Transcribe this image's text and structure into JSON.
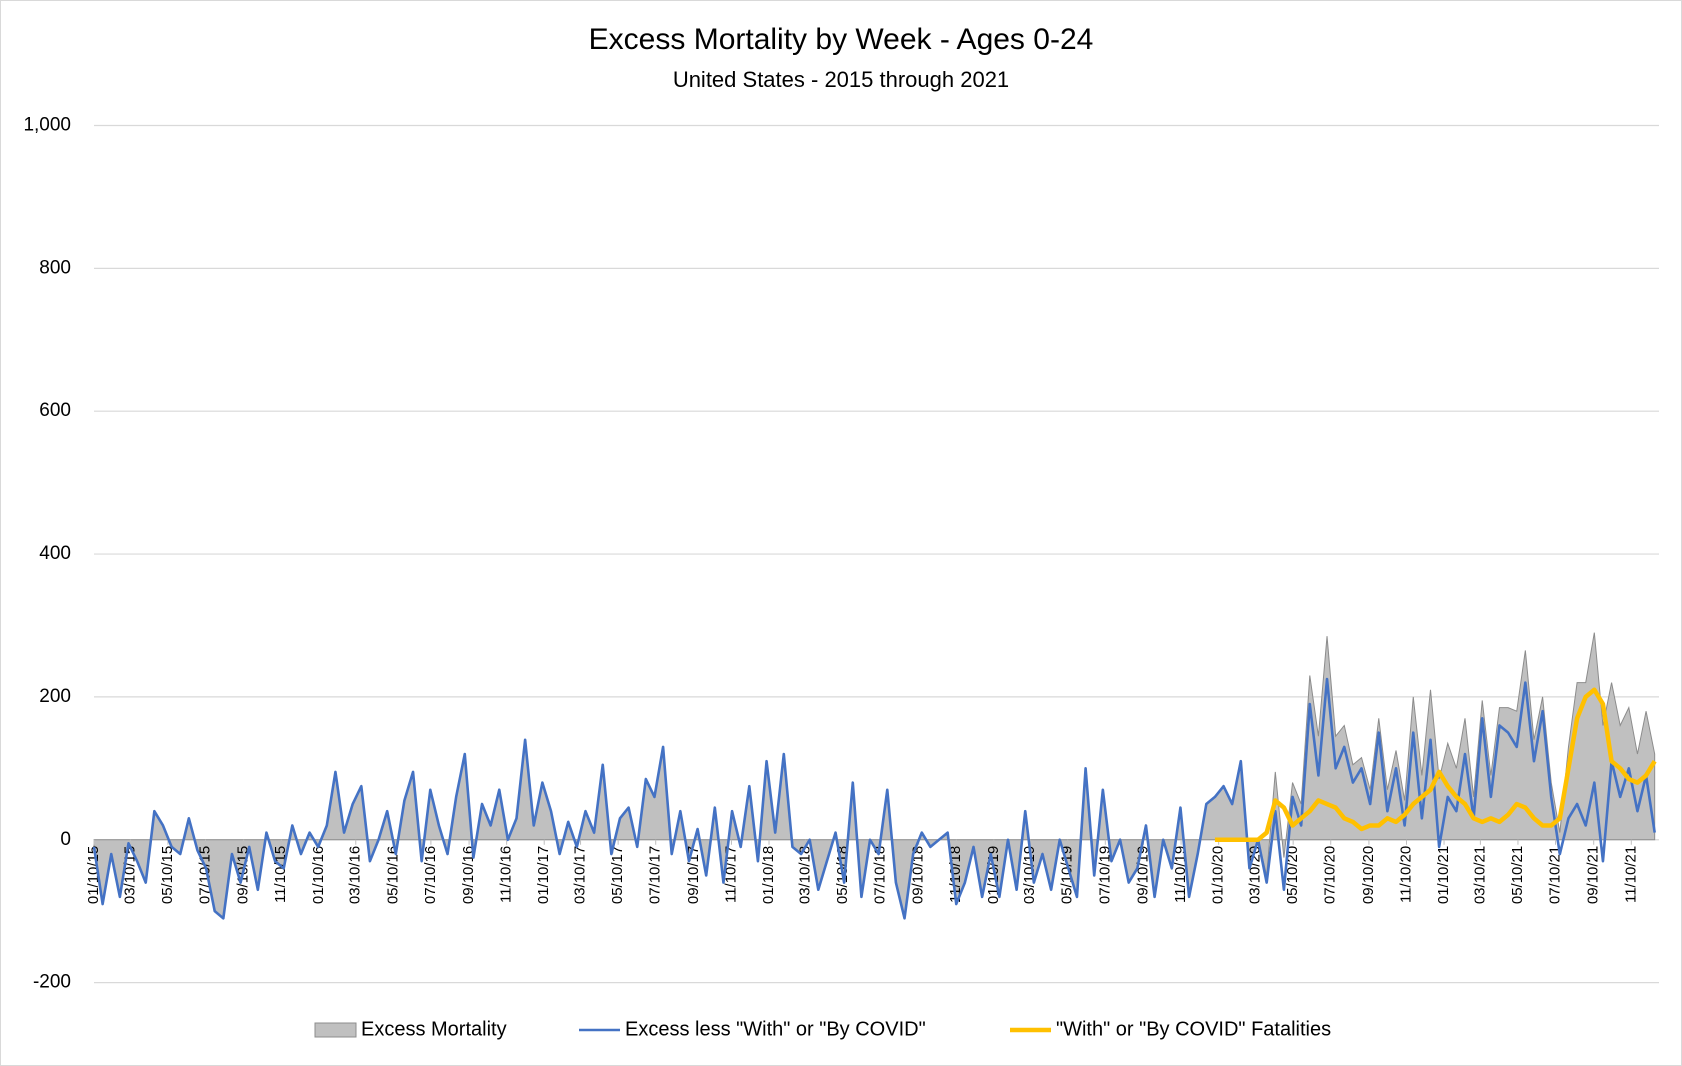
{
  "chart_data": {
    "type": "line",
    "title": "Excess Mortality by Week - Ages 0-24",
    "subtitle": "United States - 2015 through 2021",
    "x": [
      "01/10/15",
      "01/24/15",
      "02/07/15",
      "02/21/15",
      "03/07/15",
      "03/21/15",
      "04/04/15",
      "04/18/15",
      "05/02/15",
      "05/16/15",
      "05/30/15",
      "06/13/15",
      "06/27/15",
      "07/11/15",
      "07/25/15",
      "08/08/15",
      "08/22/15",
      "09/05/15",
      "09/19/15",
      "10/03/15",
      "10/17/15",
      "10/31/15",
      "11/14/15",
      "11/28/15",
      "12/12/15",
      "12/26/15",
      "01/09/16",
      "01/23/16",
      "02/06/16",
      "02/20/16",
      "03/05/16",
      "03/19/16",
      "04/02/16",
      "04/16/16",
      "04/30/16",
      "05/14/16",
      "05/28/16",
      "06/11/16",
      "06/25/16",
      "07/09/16",
      "07/23/16",
      "08/06/16",
      "08/20/16",
      "09/03/16",
      "09/17/16",
      "10/01/16",
      "10/15/16",
      "10/29/16",
      "11/12/16",
      "11/26/16",
      "12/10/16",
      "12/24/16",
      "01/07/17",
      "01/21/17",
      "02/04/17",
      "02/18/17",
      "03/04/17",
      "03/18/17",
      "04/01/17",
      "04/15/17",
      "04/29/17",
      "05/13/17",
      "05/27/17",
      "06/10/17",
      "06/24/17",
      "07/08/17",
      "07/22/17",
      "08/05/17",
      "08/19/17",
      "09/02/17",
      "09/16/17",
      "09/30/17",
      "10/14/17",
      "10/28/17",
      "11/11/17",
      "11/25/17",
      "12/09/17",
      "12/23/17",
      "01/06/18",
      "01/20/18",
      "02/03/18",
      "02/17/18",
      "03/03/18",
      "03/17/18",
      "03/31/18",
      "04/14/18",
      "04/28/18",
      "05/12/18",
      "05/26/18",
      "06/09/18",
      "06/23/18",
      "07/07/18",
      "07/21/18",
      "08/04/18",
      "08/18/18",
      "09/01/18",
      "09/15/18",
      "09/29/18",
      "10/13/18",
      "10/27/18",
      "11/10/18",
      "11/24/18",
      "12/08/18",
      "12/22/18",
      "01/05/19",
      "01/19/19",
      "02/02/19",
      "02/16/19",
      "03/02/19",
      "03/16/19",
      "03/30/19",
      "04/13/19",
      "04/27/19",
      "05/11/19",
      "05/25/19",
      "06/08/19",
      "06/22/19",
      "07/06/19",
      "07/20/19",
      "08/03/19",
      "08/17/19",
      "08/31/19",
      "09/14/19",
      "09/28/19",
      "10/12/19",
      "10/26/19",
      "11/09/19",
      "11/23/19",
      "12/07/19",
      "12/21/19",
      "01/04/20",
      "01/18/20",
      "02/01/20",
      "02/15/20",
      "02/29/20",
      "03/14/20",
      "03/28/20",
      "04/11/20",
      "04/25/20",
      "05/09/20",
      "05/23/20",
      "06/06/20",
      "06/20/20",
      "07/04/20",
      "07/18/20",
      "08/01/20",
      "08/15/20",
      "08/29/20",
      "09/12/20",
      "09/26/20",
      "10/10/20",
      "10/24/20",
      "11/07/20",
      "11/21/20",
      "12/05/20",
      "12/19/20",
      "01/02/21",
      "01/16/21",
      "01/30/21",
      "02/13/21",
      "02/27/21",
      "03/13/21",
      "03/27/21",
      "04/10/21",
      "04/24/21",
      "05/08/21",
      "05/22/21",
      "06/05/21",
      "06/19/21",
      "07/03/21",
      "07/17/21",
      "07/31/21",
      "08/14/21",
      "08/28/21",
      "09/11/21",
      "09/25/21",
      "10/09/21",
      "10/23/21",
      "11/06/21",
      "11/20/21",
      "12/04/21",
      "12/18/21"
    ],
    "series": [
      {
        "name": "Excess Mortality",
        "type": "area",
        "color": "#c0c0c0",
        "edge": "#8c8c8c",
        "values": [
          -10,
          -90,
          -20,
          -80,
          -5,
          -30,
          -60,
          40,
          20,
          -10,
          -20,
          30,
          -15,
          -40,
          -100,
          -110,
          -20,
          -60,
          -10,
          -70,
          10,
          -30,
          -40,
          20,
          -20,
          10,
          -10,
          20,
          95,
          10,
          50,
          75,
          -30,
          0,
          40,
          -20,
          55,
          95,
          -30,
          70,
          20,
          -20,
          60,
          120,
          -25,
          50,
          20,
          70,
          0,
          30,
          140,
          20,
          80,
          40,
          -20,
          25,
          -10,
          40,
          10,
          105,
          -20,
          30,
          45,
          -10,
          85,
          60,
          130,
          -20,
          40,
          -30,
          15,
          -50,
          45,
          -60,
          40,
          -10,
          75,
          -30,
          110,
          10,
          120,
          -10,
          -20,
          0,
          -70,
          -30,
          10,
          -60,
          80,
          -80,
          0,
          -20,
          70,
          -60,
          -110,
          -20,
          10,
          -10,
          0,
          10,
          -90,
          -60,
          -10,
          -80,
          -20,
          -80,
          0,
          -70,
          40,
          -60,
          -20,
          -70,
          0,
          -40,
          -80,
          100,
          -50,
          70,
          -30,
          0,
          -60,
          -40,
          20,
          -80,
          0,
          -40,
          45,
          -80,
          -20,
          50,
          60,
          75,
          50,
          110,
          -40,
          0,
          -50,
          95,
          -25,
          80,
          50,
          230,
          145,
          285,
          145,
          160,
          105,
          115,
          70,
          170,
          70,
          125,
          55,
          200,
          90,
          210,
          85,
          135,
          100,
          170,
          60,
          195,
          90,
          185,
          185,
          180,
          265,
          140,
          200,
          80,
          10,
          130,
          220,
          220,
          290,
          160,
          220,
          160,
          185,
          120,
          180,
          120
        ]
      },
      {
        "name": "Excess less \"With\" or \"By COVID\"",
        "type": "line",
        "color": "#4472c4",
        "width": 2.6,
        "values": [
          -10,
          -90,
          -20,
          -80,
          -5,
          -30,
          -60,
          40,
          20,
          -10,
          -20,
          30,
          -15,
          -40,
          -100,
          -110,
          -20,
          -60,
          -10,
          -70,
          10,
          -30,
          -40,
          20,
          -20,
          10,
          -10,
          20,
          95,
          10,
          50,
          75,
          -30,
          0,
          40,
          -20,
          55,
          95,
          -30,
          70,
          20,
          -20,
          60,
          120,
          -25,
          50,
          20,
          70,
          0,
          30,
          140,
          20,
          80,
          40,
          -20,
          25,
          -10,
          40,
          10,
          105,
          -20,
          30,
          45,
          -10,
          85,
          60,
          130,
          -20,
          40,
          -30,
          15,
          -50,
          45,
          -60,
          40,
          -10,
          75,
          -30,
          110,
          10,
          120,
          -10,
          -20,
          0,
          -70,
          -30,
          10,
          -60,
          80,
          -80,
          0,
          -20,
          70,
          -60,
          -110,
          -20,
          10,
          -10,
          0,
          10,
          -90,
          -60,
          -10,
          -80,
          -20,
          -80,
          0,
          -70,
          40,
          -60,
          -20,
          -70,
          0,
          -40,
          -80,
          100,
          -50,
          70,
          -30,
          0,
          -60,
          -40,
          20,
          -80,
          0,
          -40,
          45,
          -80,
          -20,
          50,
          60,
          75,
          50,
          110,
          -40,
          0,
          -60,
          40,
          -70,
          60,
          20,
          190,
          90,
          225,
          100,
          130,
          80,
          100,
          50,
          150,
          40,
          100,
          20,
          150,
          30,
          140,
          -10,
          60,
          40,
          120,
          30,
          170,
          60,
          160,
          150,
          130,
          220,
          110,
          180,
          60,
          -20,
          30,
          50,
          20,
          80,
          -30,
          110,
          60,
          100,
          40,
          90,
          10
        ]
      },
      {
        "name": "\"With\" or \"By COVID\" Fatalities",
        "type": "line",
        "color": "#ffc000",
        "width": 4.5,
        "values": [
          null,
          null,
          null,
          null,
          null,
          null,
          null,
          null,
          null,
          null,
          null,
          null,
          null,
          null,
          null,
          null,
          null,
          null,
          null,
          null,
          null,
          null,
          null,
          null,
          null,
          null,
          null,
          null,
          null,
          null,
          null,
          null,
          null,
          null,
          null,
          null,
          null,
          null,
          null,
          null,
          null,
          null,
          null,
          null,
          null,
          null,
          null,
          null,
          null,
          null,
          null,
          null,
          null,
          null,
          null,
          null,
          null,
          null,
          null,
          null,
          null,
          null,
          null,
          null,
          null,
          null,
          null,
          null,
          null,
          null,
          null,
          null,
          null,
          null,
          null,
          null,
          null,
          null,
          null,
          null,
          null,
          null,
          null,
          null,
          null,
          null,
          null,
          null,
          null,
          null,
          null,
          null,
          null,
          null,
          null,
          null,
          null,
          null,
          null,
          null,
          null,
          null,
          null,
          null,
          null,
          null,
          null,
          null,
          null,
          null,
          null,
          null,
          null,
          null,
          null,
          null,
          null,
          null,
          null,
          null,
          null,
          null,
          null,
          null,
          null,
          null,
          null,
          null,
          null,
          null,
          0,
          0,
          0,
          0,
          0,
          0,
          10,
          55,
          45,
          20,
          30,
          40,
          55,
          50,
          45,
          30,
          25,
          15,
          20,
          20,
          30,
          25,
          35,
          50,
          60,
          70,
          95,
          75,
          60,
          50,
          30,
          25,
          30,
          25,
          35,
          50,
          45,
          30,
          20,
          20,
          30,
          100,
          170,
          200,
          210,
          190,
          110,
          100,
          85,
          80,
          90,
          110
        ]
      }
    ],
    "xlim": [
      "01/10/15",
      "12/25/21"
    ],
    "xticks": [
      "01/10/15",
      "03/10/15",
      "05/10/15",
      "07/10/15",
      "09/10/15",
      "11/10/15",
      "01/10/16",
      "03/10/16",
      "05/10/16",
      "07/10/16",
      "09/10/16",
      "11/10/16",
      "01/10/17",
      "03/10/17",
      "05/10/17",
      "07/10/17",
      "09/10/17",
      "11/10/17",
      "01/10/18",
      "03/10/18",
      "05/10/18",
      "07/10/18",
      "09/10/18",
      "11/10/18",
      "01/10/19",
      "03/10/19",
      "05/10/19",
      "07/10/19",
      "09/10/19",
      "11/10/19",
      "01/10/20",
      "03/10/20",
      "05/10/20",
      "07/10/20",
      "09/10/20",
      "11/10/20",
      "01/10/21",
      "03/10/21",
      "05/10/21",
      "07/10/21",
      "09/10/21",
      "11/10/21"
    ],
    "ylim": [
      -200,
      1000
    ],
    "yticks": [
      -200,
      0,
      200,
      400,
      600,
      800,
      {
        "value": 1000,
        "label": "1,000"
      }
    ],
    "grid": true,
    "legend": "bottom"
  }
}
